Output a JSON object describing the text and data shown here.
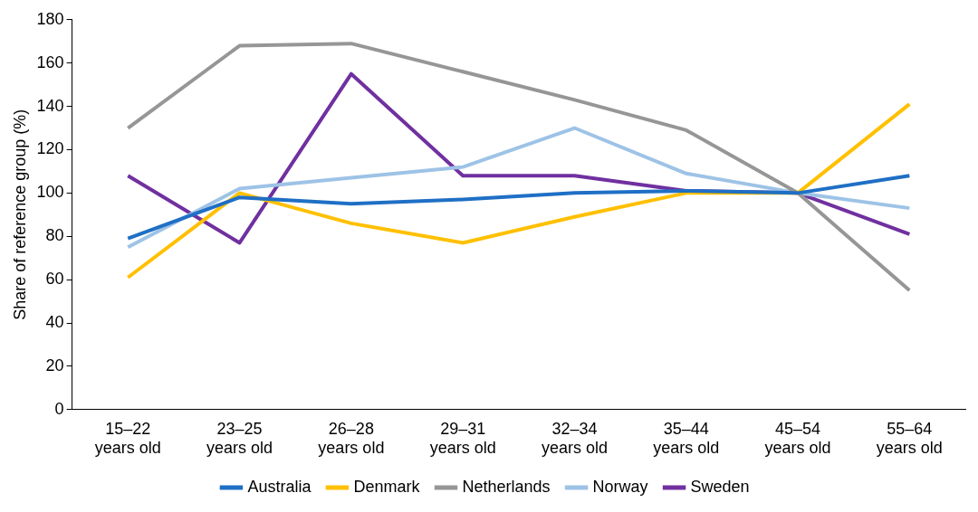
{
  "chart_data": {
    "type": "line",
    "ylabel": "Share of reference group (%)",
    "categories": [
      "15–22 years old",
      "23–25 years old",
      "26–28 years old",
      "29–31 years old",
      "32–34 years old",
      "35–44 years old",
      "45–54 years old",
      "55–64 years old"
    ],
    "series": [
      {
        "name": "Australia",
        "color": "#1f6fc5",
        "values": [
          79,
          98,
          95,
          97,
          100,
          101,
          100,
          108
        ]
      },
      {
        "name": "Denmark",
        "color": "#ffc000",
        "values": [
          61,
          100,
          86,
          77,
          89,
          100,
          100,
          141
        ]
      },
      {
        "name": "Netherlands",
        "color": "#969696",
        "values": [
          130,
          168,
          169,
          156,
          143,
          129,
          100,
          55
        ]
      },
      {
        "name": "Norway",
        "color": "#9dc3e6",
        "values": [
          75,
          102,
          107,
          112,
          130,
          109,
          100,
          93
        ]
      },
      {
        "name": "Sweden",
        "color": "#7030a0",
        "values": [
          108,
          77,
          155,
          108,
          108,
          101,
          100,
          81
        ]
      }
    ],
    "ylim": [
      0,
      180
    ],
    "yticks": [
      0,
      20,
      40,
      60,
      80,
      100,
      120,
      140,
      160,
      180
    ],
    "grid": false,
    "legend": "bottom",
    "marker": "none",
    "line_style": "solid"
  }
}
